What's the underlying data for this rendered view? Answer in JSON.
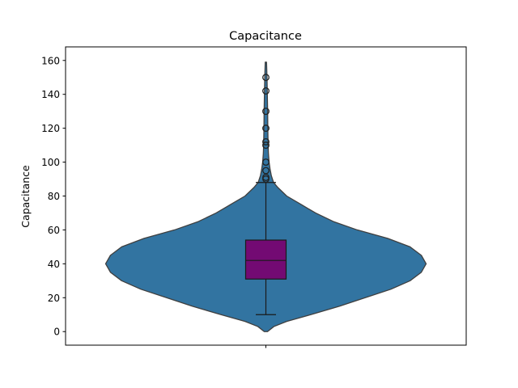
{
  "chart_data": {
    "type": "violin",
    "title": "Capacitance",
    "xlabel": "",
    "ylabel": "Capacitance",
    "ylim": [
      -8,
      168
    ],
    "yticks": [
      0,
      20,
      40,
      60,
      80,
      100,
      120,
      140,
      160
    ],
    "grid": false,
    "colors": {
      "violin_fill": "#3274a1",
      "violin_edge": "#3f3f3f",
      "box_fill": "#730a73",
      "line": "#1a1a1a"
    },
    "density": {
      "y": [
        0,
        3,
        6,
        10,
        15,
        20,
        25,
        30,
        35,
        40,
        45,
        50,
        55,
        60,
        65,
        70,
        75,
        80,
        85,
        88,
        92,
        96,
        100,
        105,
        110,
        115,
        120,
        130,
        140,
        150,
        159
      ],
      "halfwidth_ratio": [
        0.01,
        0.05,
        0.13,
        0.28,
        0.46,
        0.62,
        0.78,
        0.9,
        0.97,
        1.0,
        0.97,
        0.9,
        0.76,
        0.57,
        0.42,
        0.31,
        0.22,
        0.13,
        0.075,
        0.048,
        0.034,
        0.026,
        0.02,
        0.016,
        0.014,
        0.013,
        0.012,
        0.011,
        0.009,
        0.007,
        0.004
      ]
    },
    "box": {
      "whisker_low": 10,
      "q1": 31,
      "median": 42,
      "q3": 54,
      "whisker_high": 88
    },
    "outliers": [
      90,
      91,
      95,
      100,
      110,
      112,
      120,
      130,
      142,
      150
    ]
  }
}
